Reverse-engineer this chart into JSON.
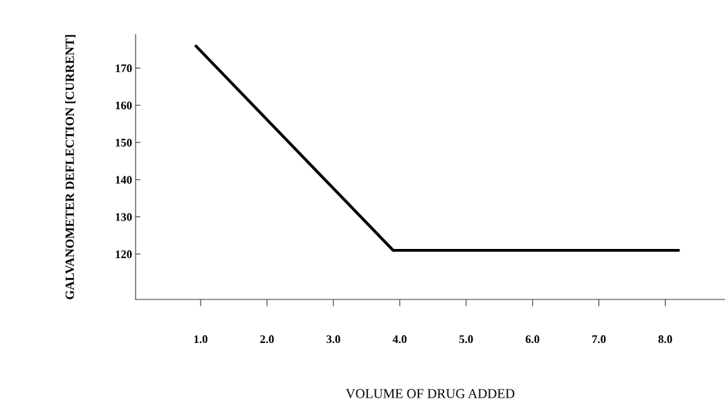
{
  "chart_data": {
    "type": "line",
    "xlabel": "VOLUME OF DRUG ADDED",
    "ylabel": "GALVANOMETER DEFLECTION [CURRENT]",
    "x": [
      0.93,
      3.9,
      8.2
    ],
    "series": [
      {
        "color": "#000000",
        "values": [
          175.9,
          121,
          121
        ]
      }
    ],
    "xlim": [
      0.02,
      8.9
    ],
    "ylim": [
      107.8,
      179
    ],
    "xticks": [
      {
        "value": 1,
        "label": "1.0"
      },
      {
        "value": 2,
        "label": "2.0"
      },
      {
        "value": 3,
        "label": "3.0"
      },
      {
        "value": 4,
        "label": "4.0"
      },
      {
        "value": 5,
        "label": "5.0"
      },
      {
        "value": 6,
        "label": "6.0"
      },
      {
        "value": 7,
        "label": "7.0"
      },
      {
        "value": 8,
        "label": "8.0"
      }
    ],
    "yticks": [
      120,
      130,
      140,
      150,
      160,
      170
    ],
    "grid": false,
    "legend": false,
    "marker": "none",
    "line_style": "solid"
  }
}
